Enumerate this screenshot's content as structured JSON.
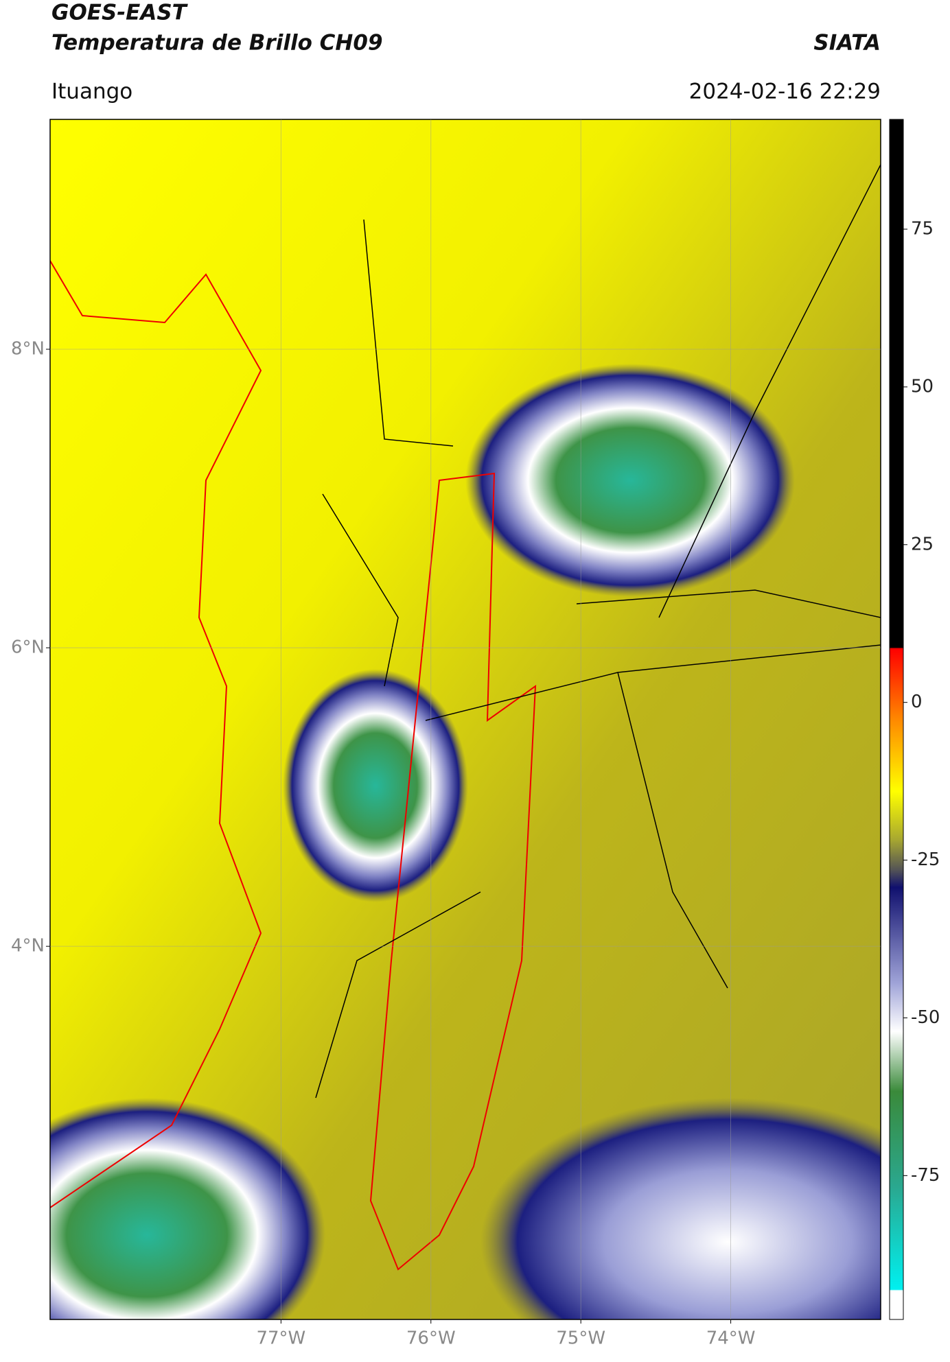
{
  "header": {
    "title": "GOES-EAST",
    "subtitle": "Temperatura de Brillo CH09",
    "source": "SIATA",
    "location": "Ituango",
    "datetime": "2024-02-16 22:29"
  },
  "map": {
    "xlim": [
      -78.54,
      -73.0
    ],
    "ylim": [
      1.5,
      9.54
    ],
    "lat_ticks": [
      {
        "value": 8,
        "label": "8°N"
      },
      {
        "value": 6,
        "label": "6°N"
      },
      {
        "value": 4,
        "label": "4°N"
      }
    ],
    "lon_ticks": [
      {
        "value": -77,
        "label": "77°W"
      },
      {
        "value": -76,
        "label": "76°W"
      },
      {
        "value": -75,
        "label": "75°W"
      },
      {
        "value": -74,
        "label": "74°W"
      }
    ]
  },
  "colorbar": {
    "lim": [
      -97.8,
      92.4
    ],
    "ticks": [
      75,
      50,
      25,
      0,
      -25,
      -50,
      -75
    ]
  }
}
